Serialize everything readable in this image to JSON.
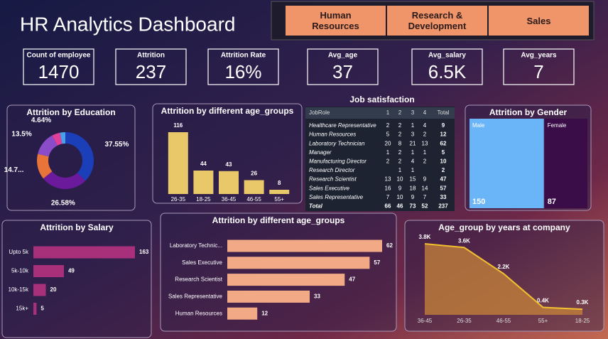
{
  "title": "HR Analytics Dashboard",
  "buttons": [
    "Human Resources",
    "Research & Development",
    "Sales"
  ],
  "kpis": [
    {
      "label": "Count of employee",
      "value": "1470"
    },
    {
      "label": "Attrition",
      "value": "237"
    },
    {
      "label": "Attrition Rate",
      "value": "16%"
    },
    {
      "label": "Avg_age",
      "value": "37"
    },
    {
      "label": "Avg_salary",
      "value": "6.5K"
    },
    {
      "label": "Avg_years",
      "value": "7"
    }
  ],
  "table": {
    "title": "Job satisfaction",
    "header": [
      "JobRole",
      "1",
      "2",
      "3",
      "4",
      "Total"
    ],
    "rows": [
      [
        "Healthcare Representative",
        2,
        2,
        1,
        4,
        9
      ],
      [
        "Human Resources",
        5,
        2,
        3,
        2,
        12
      ],
      [
        "Laboratory Technician",
        20,
        8,
        21,
        13,
        62
      ],
      [
        "Manager",
        1,
        2,
        1,
        1,
        5
      ],
      [
        "Manufacturing Director",
        2,
        2,
        4,
        2,
        10
      ],
      [
        "Research Director",
        null,
        1,
        1,
        null,
        2
      ],
      [
        "Research Scientist",
        13,
        10,
        15,
        9,
        47
      ],
      [
        "Sales Executive",
        16,
        9,
        18,
        14,
        57
      ],
      [
        "Sales Representative",
        7,
        10,
        9,
        7,
        33
      ],
      [
        "Total",
        66,
        46,
        73,
        52,
        237
      ]
    ]
  },
  "chart_data": [
    {
      "type": "donut",
      "title": "Attrition by Education",
      "values": [
        37.55,
        26.58,
        14.7,
        13.5,
        4.64,
        3.03
      ],
      "value_labels": [
        "37.55%",
        "26.58%",
        "14.7...",
        "13.5%",
        "4.64%",
        null
      ],
      "colors": [
        "#1a3fb8",
        "#6a1a9a",
        "#e8743a",
        "#8a4cc8",
        "#e0409a",
        "#4aa0e8"
      ]
    },
    {
      "type": "bar",
      "title": "Attrition by different age_groups",
      "categories": [
        "26-35",
        "18-25",
        "36-45",
        "46-55",
        "55+"
      ],
      "values": [
        116,
        44,
        43,
        26,
        8
      ],
      "color": "#e8c868"
    },
    {
      "type": "treemap",
      "title": "Attrition by Gender",
      "categories": [
        "Male",
        "Female"
      ],
      "values": [
        150,
        87
      ],
      "colors": [
        "#6ab4f8",
        "#3a0c48"
      ]
    },
    {
      "type": "hbar",
      "title": "Attrition by Salary",
      "categories": [
        "Upto 5k",
        "5k-10k",
        "10k-15k",
        "15k+"
      ],
      "values": [
        163,
        49,
        20,
        5
      ],
      "color": "#a8307a"
    },
    {
      "type": "hbar",
      "title": "Attrition by different age_groups",
      "categories": [
        "Laboratory Technic...",
        "Sales Executive",
        "Research Scientist",
        "Sales Representative",
        "Human Resources"
      ],
      "values": [
        62,
        57,
        47,
        33,
        12
      ],
      "color": "#f2aa86"
    },
    {
      "type": "area",
      "title": "Age_group by years at company",
      "categories": [
        "36-45",
        "26-35",
        "46-55",
        "55+",
        "18-25"
      ],
      "values": [
        3800,
        3600,
        2200,
        400,
        300
      ],
      "value_labels": [
        "3.8K",
        "3.6K",
        "2.2K",
        "0.4K",
        "0.3K"
      ],
      "color": "#c8843a",
      "line_color": "#f0c030"
    }
  ]
}
